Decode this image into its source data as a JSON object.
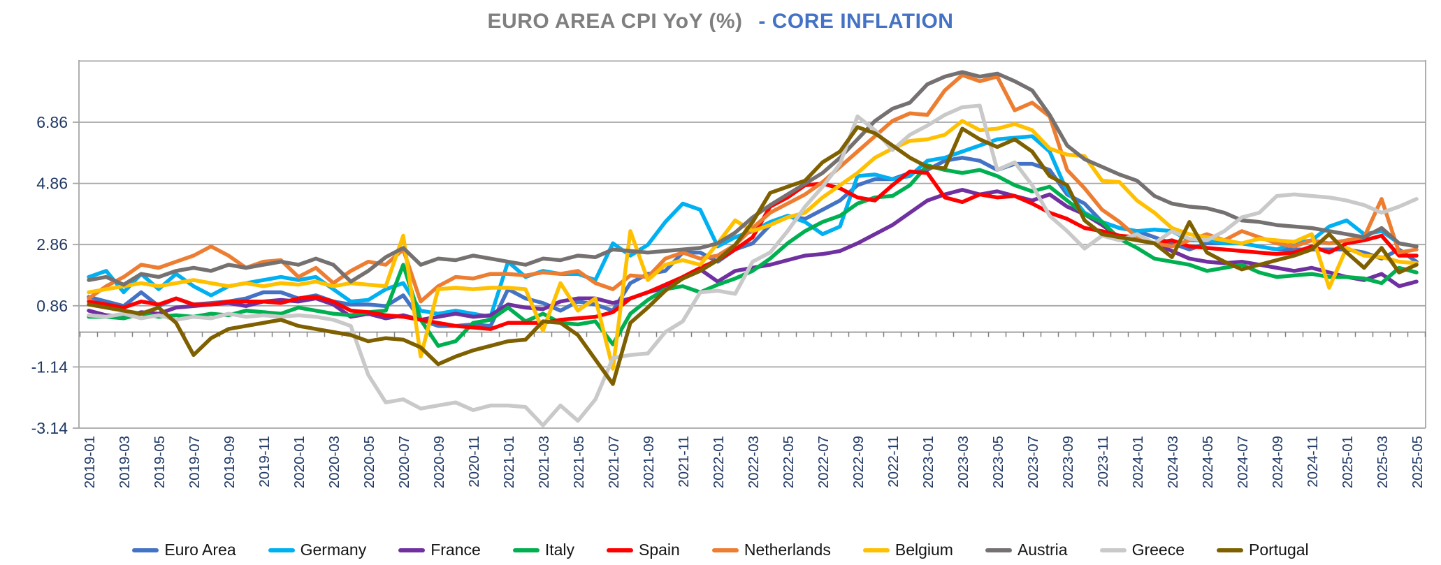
{
  "title": {
    "main": "EURO AREA CPI YoY (%)",
    "accent": "- CORE INFLATION"
  },
  "colors": {
    "title_main": "#7f7f7f",
    "title_accent": "#4472c4",
    "axis_labels": "#1f3864",
    "gridline": "#a6a6a6",
    "zero_axis": "#808080"
  },
  "chart_data": {
    "type": "line",
    "title": "EURO AREA CPI YoY (%) - CORE INFLATION",
    "xlabel": "",
    "ylabel": "",
    "grid": true,
    "legend_position": "bottom",
    "ylim": [
      -3.14,
      8.86
    ],
    "y_ticks": [
      6.86,
      4.86,
      2.86,
      0.86,
      -1.14,
      -3.14
    ],
    "y_tick_labels": [
      "6.86",
      "4.86",
      "2.86",
      "0.86",
      "-1.14",
      "-3.14"
    ],
    "category_axis_at": 0,
    "x_tick_label_every": 2,
    "x": [
      "2019-01",
      "2019-02",
      "2019-03",
      "2019-04",
      "2019-05",
      "2019-06",
      "2019-07",
      "2019-08",
      "2019-09",
      "2019-10",
      "2019-11",
      "2019-12",
      "2020-01",
      "2020-02",
      "2020-03",
      "2020-04",
      "2020-05",
      "2020-06",
      "2020-07",
      "2020-08",
      "2020-09",
      "2020-10",
      "2020-11",
      "2020-12",
      "2021-01",
      "2021-02",
      "2021-03",
      "2021-04",
      "2021-05",
      "2021-06",
      "2021-07",
      "2021-08",
      "2021-09",
      "2021-10",
      "2021-11",
      "2021-12",
      "2022-01",
      "2022-02",
      "2022-03",
      "2022-04",
      "2022-05",
      "2022-06",
      "2022-07",
      "2022-08",
      "2022-09",
      "2022-10",
      "2022-11",
      "2022-12",
      "2023-01",
      "2023-02",
      "2023-03",
      "2023-04",
      "2023-05",
      "2023-06",
      "2023-07",
      "2023-08",
      "2023-09",
      "2023-10",
      "2023-11",
      "2023-12",
      "2024-01",
      "2024-02",
      "2024-03",
      "2024-04",
      "2024-05",
      "2024-06",
      "2024-07",
      "2024-08",
      "2024-09",
      "2024-10",
      "2024-11",
      "2024-12",
      "2025-01",
      "2025-02",
      "2025-03",
      "2025-04",
      "2025-05"
    ],
    "series": [
      {
        "name": "Euro Area",
        "color": "#4472c4",
        "values": [
          1.15,
          1.0,
          0.85,
          1.3,
          0.85,
          1.1,
          0.9,
          0.95,
          1.0,
          1.1,
          1.3,
          1.3,
          1.1,
          1.2,
          1.0,
          0.9,
          0.9,
          0.85,
          1.2,
          0.4,
          0.2,
          0.2,
          0.25,
          0.2,
          1.4,
          1.1,
          0.95,
          0.7,
          1.0,
          0.9,
          0.7,
          1.6,
          1.9,
          2.0,
          2.6,
          2.6,
          2.3,
          2.7,
          2.9,
          3.5,
          3.8,
          3.7,
          4.0,
          4.3,
          4.8,
          5.0,
          5.0,
          5.2,
          5.3,
          5.6,
          5.7,
          5.6,
          5.3,
          5.5,
          5.5,
          5.3,
          4.5,
          4.2,
          3.6,
          3.4,
          3.3,
          3.1,
          2.9,
          2.7,
          2.9,
          2.9,
          2.9,
          2.8,
          2.7,
          2.7,
          2.7,
          2.7,
          2.7,
          2.6,
          2.4,
          2.7,
          2.3
        ]
      },
      {
        "name": "Germany",
        "color": "#00b0f0",
        "values": [
          1.8,
          2.0,
          1.3,
          1.9,
          1.4,
          1.9,
          1.5,
          1.2,
          1.5,
          1.6,
          1.7,
          1.8,
          1.7,
          1.8,
          1.4,
          1.0,
          1.05,
          1.4,
          1.6,
          0.7,
          0.6,
          0.7,
          0.6,
          0.5,
          2.3,
          1.8,
          2.0,
          1.9,
          1.9,
          1.7,
          2.9,
          2.5,
          2.85,
          3.6,
          4.2,
          4.0,
          2.8,
          3.1,
          3.3,
          3.6,
          3.8,
          3.6,
          3.2,
          3.45,
          5.1,
          5.15,
          5.0,
          5.1,
          5.6,
          5.7,
          5.9,
          6.1,
          6.3,
          6.35,
          6.4,
          5.9,
          4.6,
          3.9,
          3.6,
          3.4,
          3.3,
          3.35,
          3.3,
          3.0,
          3.0,
          2.9,
          2.9,
          2.8,
          2.7,
          2.9,
          3.0,
          3.45,
          3.65,
          3.2,
          3.3,
          2.9,
          2.8
        ]
      },
      {
        "name": "France",
        "color": "#7030a0",
        "values": [
          0.7,
          0.55,
          0.5,
          0.65,
          0.6,
          0.8,
          0.85,
          0.9,
          0.95,
          0.85,
          1.0,
          1.05,
          1.0,
          1.1,
          0.9,
          0.5,
          0.6,
          0.45,
          0.55,
          0.4,
          0.5,
          0.6,
          0.5,
          0.55,
          0.9,
          0.8,
          0.75,
          1.0,
          1.1,
          1.1,
          0.95,
          1.1,
          1.3,
          1.45,
          1.75,
          2.05,
          1.65,
          2.0,
          2.1,
          2.2,
          2.35,
          2.5,
          2.55,
          2.65,
          2.9,
          3.2,
          3.5,
          3.9,
          4.3,
          4.5,
          4.65,
          4.5,
          4.6,
          4.45,
          4.3,
          4.5,
          4.1,
          3.85,
          3.5,
          3.1,
          3.1,
          2.9,
          2.65,
          2.4,
          2.3,
          2.25,
          2.3,
          2.2,
          2.1,
          2.0,
          2.1,
          1.95,
          1.8,
          1.7,
          1.9,
          1.5,
          1.65
        ]
      },
      {
        "name": "Italy",
        "color": "#00b050",
        "values": [
          0.5,
          0.5,
          0.45,
          0.6,
          0.5,
          0.55,
          0.5,
          0.6,
          0.55,
          0.7,
          0.65,
          0.6,
          0.8,
          0.7,
          0.6,
          0.55,
          0.65,
          0.7,
          2.2,
          0.4,
          -0.45,
          -0.3,
          0.3,
          0.4,
          0.8,
          0.35,
          0.6,
          0.3,
          0.25,
          0.35,
          -0.4,
          0.6,
          1.05,
          1.4,
          1.5,
          1.3,
          1.55,
          1.75,
          2.0,
          2.4,
          2.9,
          3.3,
          3.6,
          3.8,
          4.2,
          4.4,
          4.45,
          4.8,
          5.45,
          5.3,
          5.2,
          5.3,
          5.1,
          4.8,
          4.6,
          4.75,
          4.3,
          3.85,
          3.6,
          3.05,
          2.75,
          2.4,
          2.3,
          2.2,
          2.0,
          2.1,
          2.2,
          1.95,
          1.8,
          1.85,
          1.9,
          1.8,
          1.8,
          1.75,
          1.6,
          2.1,
          1.95
        ]
      },
      {
        "name": "Spain",
        "color": "#ff0000",
        "values": [
          1.0,
          0.9,
          0.8,
          1.0,
          0.9,
          1.1,
          0.9,
          0.9,
          1.0,
          1.0,
          1.0,
          0.95,
          1.1,
          1.15,
          1.0,
          0.7,
          0.65,
          0.55,
          0.5,
          0.4,
          0.3,
          0.2,
          0.15,
          0.1,
          0.3,
          0.3,
          0.3,
          0.4,
          0.45,
          0.5,
          0.65,
          1.1,
          1.3,
          1.55,
          1.8,
          2.1,
          2.35,
          2.7,
          3.1,
          4.1,
          4.4,
          4.8,
          4.85,
          4.7,
          4.4,
          4.3,
          4.8,
          5.25,
          5.2,
          4.4,
          4.25,
          4.5,
          4.4,
          4.45,
          4.2,
          3.9,
          3.7,
          3.4,
          3.3,
          3.15,
          3.1,
          2.9,
          3.0,
          2.8,
          2.75,
          2.7,
          2.65,
          2.6,
          2.55,
          2.6,
          2.8,
          2.6,
          2.9,
          3.0,
          3.15,
          2.5,
          2.5
        ]
      },
      {
        "name": "Netherlands",
        "color": "#ed7d31",
        "values": [
          1.1,
          1.5,
          1.8,
          2.2,
          2.1,
          2.3,
          2.5,
          2.8,
          2.5,
          2.1,
          2.3,
          2.35,
          1.8,
          2.1,
          1.6,
          2.0,
          2.3,
          2.2,
          2.7,
          1.0,
          1.5,
          1.8,
          1.75,
          1.9,
          1.9,
          1.85,
          1.95,
          1.9,
          2.0,
          1.6,
          1.4,
          1.85,
          1.8,
          2.4,
          2.6,
          2.4,
          2.5,
          2.85,
          3.4,
          3.9,
          4.2,
          4.5,
          4.9,
          5.4,
          5.9,
          6.4,
          6.9,
          7.15,
          7.1,
          7.9,
          8.4,
          8.2,
          8.35,
          7.25,
          7.5,
          7.05,
          5.3,
          4.7,
          4.0,
          3.6,
          3.1,
          2.9,
          2.8,
          3.0,
          3.2,
          3.0,
          3.3,
          3.1,
          2.9,
          2.8,
          3.0,
          2.9,
          3.0,
          3.1,
          4.35,
          2.6,
          2.7
        ]
      },
      {
        "name": "Belgium",
        "color": "#ffc000",
        "values": [
          1.3,
          1.4,
          1.5,
          1.6,
          1.5,
          1.6,
          1.7,
          1.6,
          1.5,
          1.6,
          1.5,
          1.6,
          1.55,
          1.65,
          1.5,
          1.6,
          1.55,
          1.5,
          3.15,
          -0.8,
          1.4,
          1.45,
          1.4,
          1.45,
          1.45,
          1.4,
          0.05,
          1.6,
          0.7,
          1.1,
          -1.2,
          3.3,
          1.7,
          2.2,
          2.35,
          2.2,
          2.9,
          3.65,
          3.3,
          3.5,
          3.75,
          3.9,
          4.4,
          4.8,
          5.2,
          5.7,
          6.0,
          6.25,
          6.3,
          6.45,
          6.9,
          6.6,
          6.65,
          6.8,
          6.6,
          6.0,
          5.8,
          5.75,
          4.95,
          4.9,
          4.3,
          3.9,
          3.4,
          3.2,
          3.1,
          3.0,
          2.9,
          3.05,
          3.0,
          2.95,
          3.2,
          1.45,
          2.75,
          2.5,
          2.45,
          2.3,
          2.25
        ]
      },
      {
        "name": "Austria",
        "color": "#767171",
        "values": [
          1.7,
          1.8,
          1.55,
          1.9,
          1.8,
          2.0,
          2.1,
          2.0,
          2.2,
          2.1,
          2.2,
          2.3,
          2.2,
          2.4,
          2.2,
          1.65,
          2.0,
          2.45,
          2.75,
          2.2,
          2.4,
          2.35,
          2.5,
          2.4,
          2.3,
          2.2,
          2.4,
          2.35,
          2.5,
          2.45,
          2.7,
          2.65,
          2.6,
          2.65,
          2.7,
          2.75,
          2.9,
          3.25,
          3.75,
          4.15,
          4.5,
          4.85,
          5.2,
          5.7,
          6.3,
          6.9,
          7.3,
          7.5,
          8.1,
          8.35,
          8.5,
          8.35,
          8.45,
          8.2,
          7.9,
          7.1,
          6.1,
          5.65,
          5.4,
          5.15,
          4.95,
          4.45,
          4.2,
          4.1,
          4.05,
          3.9,
          3.65,
          3.6,
          3.5,
          3.45,
          3.4,
          3.3,
          3.2,
          3.1,
          3.4,
          2.9,
          2.8
        ]
      },
      {
        "name": "Greece",
        "color": "#c9c9c9",
        "values": [
          0.55,
          0.5,
          0.6,
          0.45,
          0.55,
          0.4,
          0.5,
          0.45,
          0.6,
          0.5,
          0.55,
          0.5,
          0.55,
          0.5,
          0.4,
          0.2,
          -1.4,
          -2.3,
          -2.2,
          -2.5,
          -2.4,
          -2.3,
          -2.55,
          -2.4,
          -2.4,
          -2.45,
          -3.05,
          -2.4,
          -2.9,
          -2.2,
          -0.85,
          -0.75,
          -0.7,
          0.0,
          0.35,
          1.3,
          1.35,
          1.25,
          2.3,
          2.6,
          3.3,
          4.1,
          4.75,
          5.5,
          7.05,
          6.6,
          5.95,
          6.45,
          6.75,
          7.1,
          7.35,
          7.4,
          5.3,
          5.55,
          4.8,
          3.8,
          3.3,
          2.73,
          3.15,
          3.0,
          3.2,
          2.9,
          3.3,
          3.05,
          3.0,
          3.3,
          3.75,
          3.9,
          4.45,
          4.5,
          4.45,
          4.4,
          4.3,
          4.15,
          3.9,
          4.1,
          4.35
        ]
      },
      {
        "name": "Portugal",
        "color": "#7f6000",
        "values": [
          0.9,
          0.8,
          0.7,
          0.6,
          0.8,
          0.3,
          -0.75,
          -0.2,
          0.1,
          0.2,
          0.3,
          0.4,
          0.2,
          0.1,
          0.0,
          -0.1,
          -0.3,
          -0.2,
          -0.25,
          -0.5,
          -1.05,
          -0.8,
          -0.6,
          -0.45,
          -0.3,
          -0.25,
          0.35,
          0.3,
          -0.1,
          -0.9,
          -1.7,
          0.3,
          0.8,
          1.35,
          1.75,
          2.0,
          2.35,
          2.85,
          3.6,
          4.55,
          4.75,
          4.95,
          5.55,
          5.9,
          6.7,
          6.5,
          6.1,
          5.7,
          5.4,
          5.35,
          6.65,
          6.3,
          6.05,
          6.3,
          5.9,
          5.1,
          4.8,
          3.65,
          3.2,
          3.1,
          3.0,
          2.9,
          2.45,
          3.6,
          2.6,
          2.3,
          2.05,
          2.2,
          2.35,
          2.5,
          2.7,
          3.2,
          2.6,
          2.1,
          2.75,
          1.95,
          2.2
        ]
      }
    ]
  }
}
